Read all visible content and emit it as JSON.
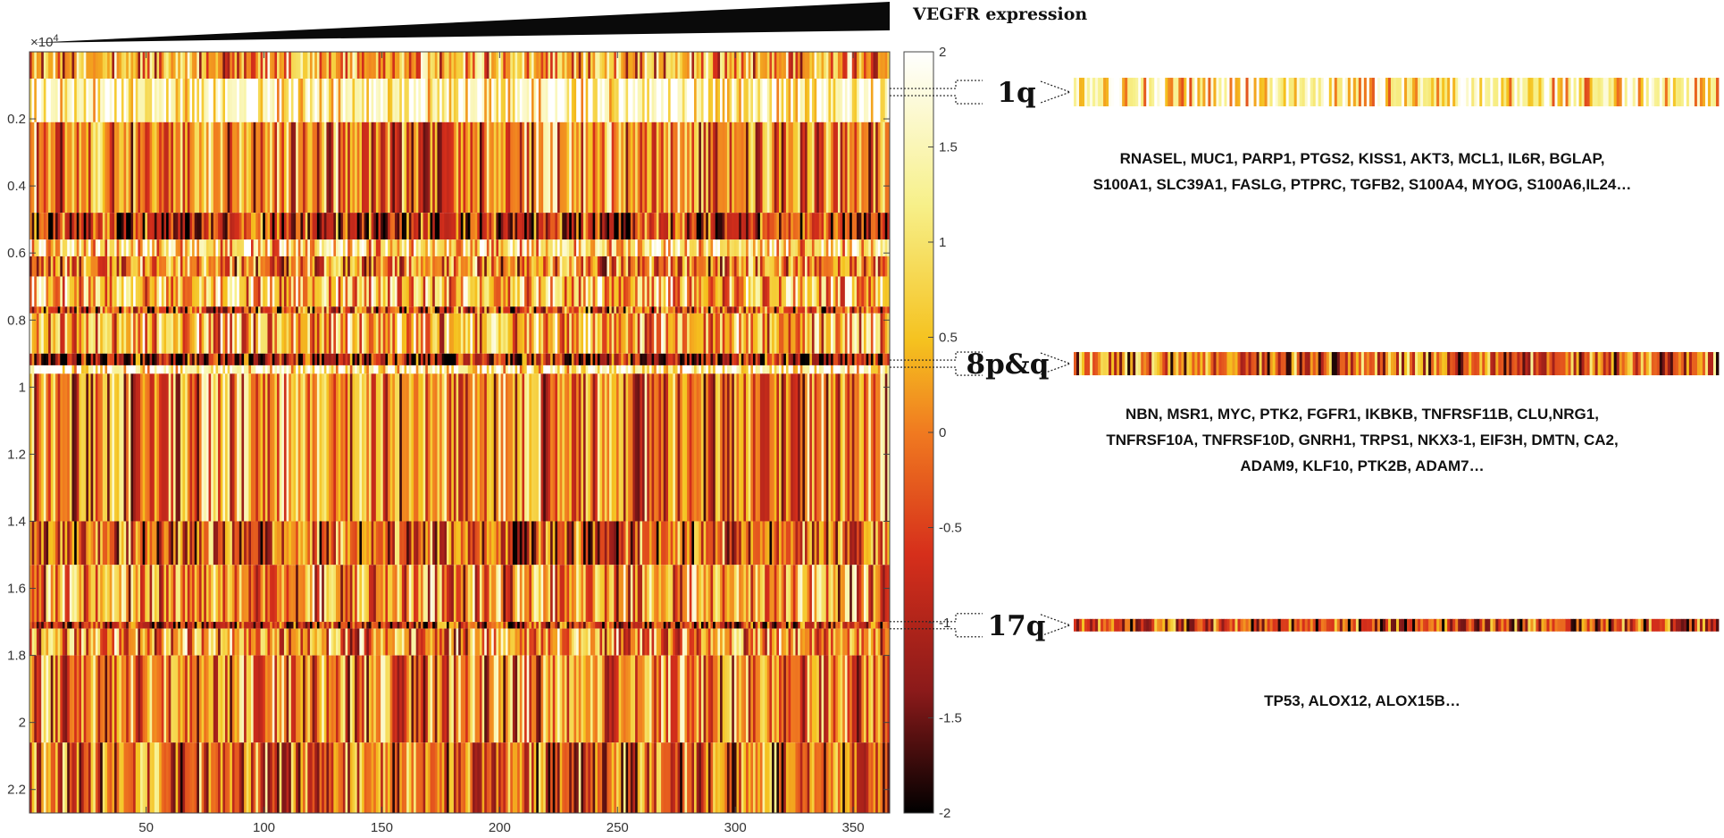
{
  "chart_data": {
    "type": "heatmap",
    "title": "VEGFR expression",
    "y_exponent_label": "×10",
    "y_exponent_power": "4",
    "x_ticks": [
      50,
      100,
      150,
      200,
      250,
      300,
      350
    ],
    "x_range": [
      1,
      365
    ],
    "y_ticks": [
      0.2,
      0.4,
      0.6,
      0.8,
      1,
      1.2,
      1.4,
      1.6,
      1.8,
      2,
      2.2
    ],
    "y_range": [
      0,
      2.27
    ],
    "colorbar": {
      "ticks": [
        -2,
        -1.5,
        -1,
        -0.5,
        0,
        0.5,
        1,
        1.5,
        2
      ],
      "range": [
        -2,
        2
      ],
      "colors": [
        "#000000",
        "#8b1a1a",
        "#d62f1b",
        "#f07a20",
        "#f5c21f",
        "#f7f08a",
        "#ffffff"
      ]
    },
    "column_count": 365,
    "bands": [
      {
        "from": 0.0,
        "to": 0.08,
        "level": 0.2
      },
      {
        "from": 0.08,
        "to": 0.21,
        "level": 1.55
      },
      {
        "from": 0.21,
        "to": 0.48,
        "level": 0.05
      },
      {
        "from": 0.48,
        "to": 0.56,
        "level": -0.8
      },
      {
        "from": 0.56,
        "to": 0.61,
        "level": 0.9
      },
      {
        "from": 0.61,
        "to": 0.67,
        "level": 0.0
      },
      {
        "from": 0.67,
        "to": 0.76,
        "level": 0.6
      },
      {
        "from": 0.76,
        "to": 0.78,
        "level": -0.6
      },
      {
        "from": 0.78,
        "to": 0.9,
        "level": 0.4
      },
      {
        "from": 0.9,
        "to": 0.935,
        "level": -1.1
      },
      {
        "from": 0.935,
        "to": 0.96,
        "level": 1.4
      },
      {
        "from": 0.96,
        "to": 1.4,
        "level": 0.0
      },
      {
        "from": 1.4,
        "to": 1.53,
        "level": -0.35
      },
      {
        "from": 1.53,
        "to": 1.7,
        "level": 0.1
      },
      {
        "from": 1.7,
        "to": 1.72,
        "level": -0.9
      },
      {
        "from": 1.72,
        "to": 1.8,
        "level": 0.2
      },
      {
        "from": 1.8,
        "to": 2.06,
        "level": 0.05
      },
      {
        "from": 2.06,
        "to": 2.27,
        "level": -0.2
      }
    ],
    "regions": [
      {
        "label": "1q",
        "y_value": 0.12,
        "strip_level": 1.2,
        "genes": [
          "RNASEL,  MUC1,  PARP1,  PTGS2,  KISS1,  AKT3,  MCL1,  IL6R,  BGLAP,",
          "S100A1,  SLC39A1,  FASLG,  PTPRC,  TGFB2,  S100A4,  MYOG,  S100A6,IL24…"
        ]
      },
      {
        "label": "8p&q",
        "y_value": 0.93,
        "strip_level": -0.3,
        "genes": [
          "NBN,  MSR1,  MYC,  PTK2,  FGFR1,  IKBKB,  TNFRSF11B,  CLU,NRG1,",
          "TNFRSF10A,  TNFRSF10D,  GNRH1,  TRPS1,  NKX3-1,  EIF3H,  DMTN,  CA2,",
          "ADAM9,  KLF10,  PTK2B,  ADAM7…"
        ]
      },
      {
        "label": "17q",
        "y_value": 1.71,
        "strip_level": -0.6,
        "genes": [
          "TP53,  ALOX12,  ALOX15B…"
        ]
      }
    ]
  }
}
